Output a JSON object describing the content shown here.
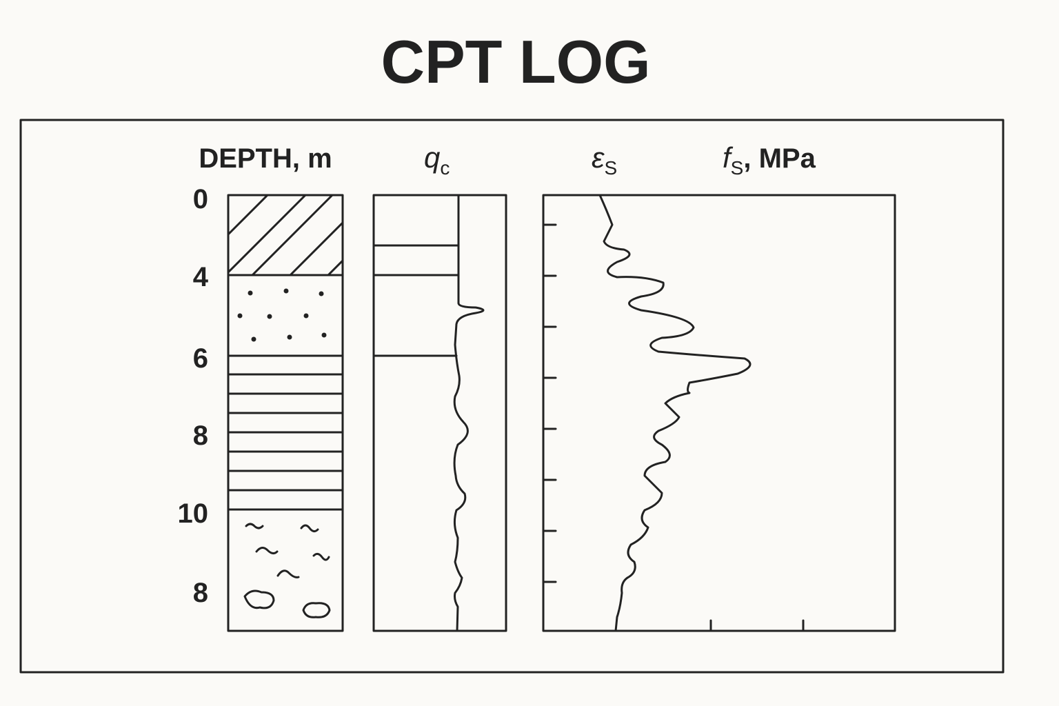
{
  "title": "CPT LOG",
  "headers": {
    "depth": "DEPTH, m",
    "qc": {
      "symbol": "q",
      "subscript": "c"
    },
    "eps": {
      "symbol": "ε",
      "subscript": "S"
    },
    "fs": {
      "symbol": "f",
      "subscript": "S",
      "unit": ", MPa"
    }
  },
  "depth_labels": [
    "0",
    "4",
    "6",
    "8",
    "10",
    "8"
  ]
}
